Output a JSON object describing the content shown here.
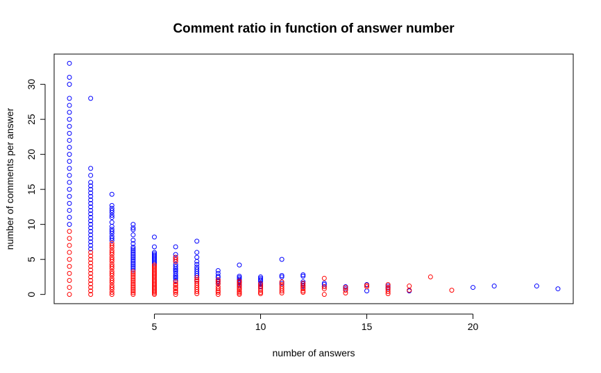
{
  "chart_data": {
    "type": "scatter",
    "title": "Comment ratio in function of answer number",
    "xlabel": "number of answers",
    "ylabel": "number of comments per answer",
    "xlim": [
      0.28,
      24.72
    ],
    "ylim": [
      -1.32,
      34.32
    ],
    "xticks": [
      5,
      10,
      15,
      20
    ],
    "yticks": [
      0,
      5,
      10,
      15,
      20,
      25,
      30
    ],
    "grid": false,
    "legend": "none",
    "marker": "open-circle",
    "colors": {
      "blue": "#0000ff",
      "red": "#ff0000"
    },
    "series": [
      {
        "color": "#0000ff",
        "points": [
          [
            1,
            33
          ],
          [
            1,
            31
          ],
          [
            1,
            30
          ],
          [
            1,
            28
          ],
          [
            1,
            27
          ],
          [
            1,
            26
          ],
          [
            1,
            25
          ],
          [
            1,
            24
          ],
          [
            1,
            23
          ],
          [
            1,
            22
          ],
          [
            1,
            21
          ],
          [
            1,
            20
          ],
          [
            1,
            19
          ],
          [
            1,
            18
          ],
          [
            1,
            17
          ],
          [
            1,
            16
          ],
          [
            1,
            15
          ],
          [
            1,
            14
          ],
          [
            1,
            13
          ],
          [
            1,
            12
          ],
          [
            1,
            11
          ],
          [
            1,
            10
          ],
          [
            2,
            28
          ],
          [
            2,
            18
          ],
          [
            2,
            17
          ],
          [
            2,
            16
          ],
          [
            2,
            15.5
          ],
          [
            2,
            15
          ],
          [
            2,
            14.5
          ],
          [
            2,
            14
          ],
          [
            2,
            13.5
          ],
          [
            2,
            13
          ],
          [
            2,
            12.5
          ],
          [
            2,
            12
          ],
          [
            2,
            11.5
          ],
          [
            2,
            11
          ],
          [
            2,
            10.5
          ],
          [
            2,
            10
          ],
          [
            2,
            9.5
          ],
          [
            2,
            9
          ],
          [
            2,
            8.5
          ],
          [
            2,
            8
          ],
          [
            2,
            7.5
          ],
          [
            2,
            7
          ],
          [
            2,
            6.5
          ],
          [
            3,
            14.3
          ],
          [
            3,
            12.7
          ],
          [
            3,
            12.3
          ],
          [
            3,
            12
          ],
          [
            3,
            11.7
          ],
          [
            3,
            11.3
          ],
          [
            3,
            11
          ],
          [
            3,
            10.3
          ],
          [
            3,
            9.7
          ],
          [
            3,
            9.3
          ],
          [
            3,
            9
          ],
          [
            3,
            8.7
          ],
          [
            3,
            8.3
          ],
          [
            3,
            8
          ],
          [
            3,
            7.7
          ],
          [
            4,
            10
          ],
          [
            4,
            9.5
          ],
          [
            4,
            9.25
          ],
          [
            4,
            8.5
          ],
          [
            4,
            7.75
          ],
          [
            4,
            7.25
          ],
          [
            4,
            6.75
          ],
          [
            4,
            6.5
          ],
          [
            4,
            6.25
          ],
          [
            4,
            6
          ],
          [
            4,
            5.75
          ],
          [
            4,
            5.5
          ],
          [
            4,
            5.25
          ],
          [
            4,
            5
          ],
          [
            4,
            4.75
          ],
          [
            4,
            4.5
          ],
          [
            4,
            4.25
          ],
          [
            4,
            4
          ],
          [
            4,
            3.75
          ],
          [
            4,
            3.5
          ],
          [
            5,
            8.2
          ],
          [
            5,
            6.8
          ],
          [
            5,
            6
          ],
          [
            5,
            5.8
          ],
          [
            5,
            5.6
          ],
          [
            5,
            5.4
          ],
          [
            5,
            5.2
          ],
          [
            5,
            5
          ],
          [
            5,
            4.8
          ],
          [
            5,
            4.6
          ],
          [
            5,
            4.4
          ],
          [
            6,
            6.8
          ],
          [
            6,
            5.7
          ],
          [
            6,
            5.3
          ],
          [
            6,
            5
          ],
          [
            6,
            4.7
          ],
          [
            6,
            4.3
          ],
          [
            6,
            4
          ],
          [
            6,
            3.7
          ],
          [
            6,
            3.5
          ],
          [
            6,
            3.3
          ],
          [
            6,
            3
          ],
          [
            6,
            2.7
          ],
          [
            6,
            2.5
          ],
          [
            6,
            2.3
          ],
          [
            6,
            2
          ],
          [
            7,
            7.6
          ],
          [
            7,
            6
          ],
          [
            7,
            5.3
          ],
          [
            7,
            4.7
          ],
          [
            7,
            4.3
          ],
          [
            7,
            3.9
          ],
          [
            7,
            3.6
          ],
          [
            7,
            3.3
          ],
          [
            7,
            3
          ],
          [
            7,
            2.7
          ],
          [
            7,
            2.4
          ],
          [
            7,
            2.1
          ],
          [
            7,
            1.9
          ],
          [
            8,
            3.4
          ],
          [
            8,
            3
          ],
          [
            8,
            2.6
          ],
          [
            8,
            2.4
          ],
          [
            8,
            2.1
          ],
          [
            8,
            1.9
          ],
          [
            8,
            1.6
          ],
          [
            9,
            4.2
          ],
          [
            9,
            2.6
          ],
          [
            9,
            2.4
          ],
          [
            9,
            2.2
          ],
          [
            9,
            2
          ],
          [
            9,
            1.8
          ],
          [
            9,
            1.6
          ],
          [
            9,
            1.3
          ],
          [
            10,
            2.5
          ],
          [
            10,
            2.3
          ],
          [
            10,
            2.1
          ],
          [
            10,
            1.9
          ],
          [
            10,
            1.6
          ],
          [
            10,
            1.4
          ],
          [
            10,
            1.1
          ],
          [
            11,
            5
          ],
          [
            11,
            2.7
          ],
          [
            11,
            2.5
          ],
          [
            11,
            1.6
          ],
          [
            12,
            2.8
          ],
          [
            12,
            2.6
          ],
          [
            12,
            1.8
          ],
          [
            12,
            1.5
          ],
          [
            12,
            1.2
          ],
          [
            13,
            1.6
          ],
          [
            13,
            1.4
          ],
          [
            13,
            1.1
          ],
          [
            14,
            1.1
          ],
          [
            14,
            0.8
          ],
          [
            15,
            1.4
          ],
          [
            15,
            0.5
          ],
          [
            16,
            1.2
          ],
          [
            16,
            0.9
          ],
          [
            17,
            0.5
          ],
          [
            20,
            1
          ],
          [
            21,
            1.2
          ],
          [
            23,
            1.2
          ],
          [
            24,
            0.8
          ]
        ]
      },
      {
        "color": "#ff0000",
        "points": [
          [
            1,
            9
          ],
          [
            1,
            8
          ],
          [
            1,
            7
          ],
          [
            1,
            6
          ],
          [
            1,
            5
          ],
          [
            1,
            4
          ],
          [
            1,
            3
          ],
          [
            1,
            2
          ],
          [
            1,
            1
          ],
          [
            1,
            0
          ],
          [
            2,
            6
          ],
          [
            2,
            5.5
          ],
          [
            2,
            5
          ],
          [
            2,
            4.5
          ],
          [
            2,
            4
          ],
          [
            2,
            3.5
          ],
          [
            2,
            3
          ],
          [
            2,
            2.5
          ],
          [
            2,
            2
          ],
          [
            2,
            1.5
          ],
          [
            2,
            1
          ],
          [
            2,
            0.5
          ],
          [
            2,
            0
          ],
          [
            3,
            7.3
          ],
          [
            3,
            7
          ],
          [
            3,
            6.7
          ],
          [
            3,
            6.3
          ],
          [
            3,
            6
          ],
          [
            3,
            5.7
          ],
          [
            3,
            5.3
          ],
          [
            3,
            5
          ],
          [
            3,
            4.7
          ],
          [
            3,
            4.3
          ],
          [
            3,
            4
          ],
          [
            3,
            3.7
          ],
          [
            3,
            3.3
          ],
          [
            3,
            3
          ],
          [
            3,
            2.7
          ],
          [
            3,
            2.3
          ],
          [
            3,
            2
          ],
          [
            3,
            1.7
          ],
          [
            3,
            1.3
          ],
          [
            3,
            1
          ],
          [
            3,
            0.7
          ],
          [
            3,
            0.3
          ],
          [
            3,
            0
          ],
          [
            4,
            3.25
          ],
          [
            4,
            3
          ],
          [
            4,
            2.75
          ],
          [
            4,
            2.5
          ],
          [
            4,
            2.25
          ],
          [
            4,
            2
          ],
          [
            4,
            1.75
          ],
          [
            4,
            1.5
          ],
          [
            4,
            1.25
          ],
          [
            4,
            1
          ],
          [
            4,
            0.75
          ],
          [
            4,
            0.5
          ],
          [
            4,
            0.25
          ],
          [
            4,
            0
          ],
          [
            5,
            4.2
          ],
          [
            5,
            4
          ],
          [
            5,
            3.8
          ],
          [
            5,
            3.6
          ],
          [
            5,
            3.4
          ],
          [
            5,
            3.2
          ],
          [
            5,
            3
          ],
          [
            5,
            2.8
          ],
          [
            5,
            2.6
          ],
          [
            5,
            2.4
          ],
          [
            5,
            2.2
          ],
          [
            5,
            2
          ],
          [
            5,
            1.8
          ],
          [
            5,
            1.6
          ],
          [
            5,
            1.4
          ],
          [
            5,
            1.2
          ],
          [
            5,
            1
          ],
          [
            5,
            0.8
          ],
          [
            5,
            0.6
          ],
          [
            5,
            0.4
          ],
          [
            5,
            0.2
          ],
          [
            5,
            0
          ],
          [
            6,
            5.3
          ],
          [
            6,
            5
          ],
          [
            6,
            4.7
          ],
          [
            6,
            1.8
          ],
          [
            6,
            1.5
          ],
          [
            6,
            1.3
          ],
          [
            6,
            1
          ],
          [
            6,
            0.8
          ],
          [
            6,
            0.5
          ],
          [
            6,
            0.3
          ],
          [
            6,
            0
          ],
          [
            7,
            2.4
          ],
          [
            7,
            2.1
          ],
          [
            7,
            1.9
          ],
          [
            7,
            1.6
          ],
          [
            7,
            1.3
          ],
          [
            7,
            1
          ],
          [
            7,
            0.7
          ],
          [
            7,
            0.4
          ],
          [
            7,
            0.1
          ],
          [
            8,
            2.1
          ],
          [
            8,
            1.8
          ],
          [
            8,
            1.5
          ],
          [
            8,
            1.1
          ],
          [
            8,
            0.8
          ],
          [
            8,
            0.5
          ],
          [
            8,
            0.3
          ],
          [
            8,
            0
          ],
          [
            9,
            1.9
          ],
          [
            9,
            1.7
          ],
          [
            9,
            1.4
          ],
          [
            9,
            1.1
          ],
          [
            9,
            0.9
          ],
          [
            9,
            0.7
          ],
          [
            9,
            0.4
          ],
          [
            9,
            0.2
          ],
          [
            9,
            0
          ],
          [
            10,
            1.5
          ],
          [
            10,
            1.2
          ],
          [
            10,
            0.9
          ],
          [
            10,
            0.6
          ],
          [
            10,
            0.3
          ],
          [
            10,
            0.1
          ],
          [
            11,
            1.8
          ],
          [
            11,
            1.4
          ],
          [
            11,
            1.1
          ],
          [
            11,
            0.8
          ],
          [
            11,
            0.5
          ],
          [
            11,
            0.2
          ],
          [
            12,
            1.6
          ],
          [
            12,
            1.3
          ],
          [
            12,
            1
          ],
          [
            12,
            0.8
          ],
          [
            12,
            0.5
          ],
          [
            12,
            0.3
          ],
          [
            13,
            2.3
          ],
          [
            13,
            1.1
          ],
          [
            13,
            0.8
          ],
          [
            13,
            0
          ],
          [
            14,
            1
          ],
          [
            14,
            0.6
          ],
          [
            14,
            0.2
          ],
          [
            15,
            1.3
          ],
          [
            15,
            1.1
          ],
          [
            16,
            1.4
          ],
          [
            16,
            1
          ],
          [
            16,
            0.7
          ],
          [
            16,
            0.4
          ],
          [
            16,
            0.1
          ],
          [
            17,
            1.2
          ],
          [
            17,
            0.6
          ],
          [
            18,
            2.5
          ],
          [
            19,
            0.6
          ]
        ]
      }
    ]
  }
}
